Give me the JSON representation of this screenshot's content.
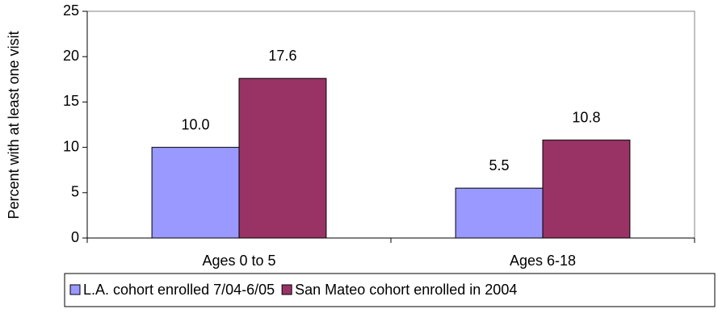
{
  "chart_data": {
    "type": "bar",
    "y_label": "Percent with at least one visit",
    "categories": [
      "Ages 0 to 5",
      "Ages 6-18"
    ],
    "series": [
      {
        "name": "L.A. cohort enrolled 7/04-6/05",
        "color": "#9999ff",
        "values": [
          10.0,
          5.5
        ],
        "value_labels": [
          "10.0",
          "5.5"
        ]
      },
      {
        "name": "San Mateo cohort enrolled in 2004",
        "color": "#993366",
        "values": [
          17.6,
          10.8
        ],
        "value_labels": [
          "17.6",
          "10.8"
        ]
      }
    ],
    "ylim": [
      0,
      25
    ],
    "yticks": [
      0,
      5,
      10,
      15,
      20,
      25
    ],
    "grid": false,
    "legend": "bottom"
  }
}
